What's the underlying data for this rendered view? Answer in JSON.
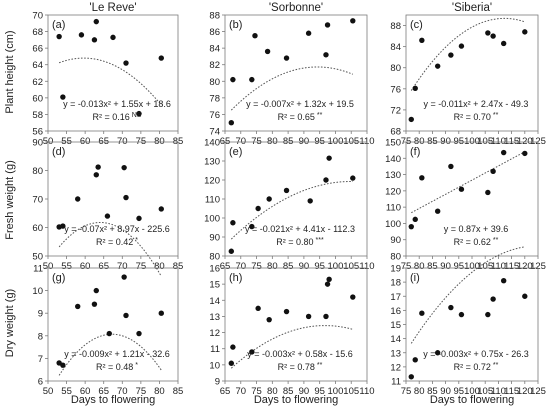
{
  "figure": {
    "column_titles": [
      "'Le Reve'",
      "'Sorbonne'",
      "'Siberia'"
    ],
    "row_ylabels": [
      "Plant height (cm)",
      "Fresh weight (g)",
      "Dry weight (g)"
    ],
    "xlabel": "Days to flowering"
  },
  "chart_data": [
    {
      "type": "scatter",
      "panel": "(a)",
      "col": 0,
      "row": 0,
      "xlim": [
        50,
        85
      ],
      "xticks": [
        50,
        55,
        60,
        65,
        70,
        75,
        80,
        85
      ],
      "ylim": [
        56,
        70
      ],
      "yticks": [
        56,
        58,
        60,
        62,
        64,
        66,
        68,
        70
      ],
      "points": [
        [
          53,
          67.4
        ],
        [
          54,
          60.1
        ],
        [
          59,
          67.6
        ],
        [
          62.5,
          67.0
        ],
        [
          63,
          69.2
        ],
        [
          67.5,
          67.3
        ],
        [
          71,
          64.2
        ],
        [
          74.5,
          58.1
        ],
        [
          80.5,
          64.8
        ]
      ],
      "fit": {
        "a": -0.013,
        "b": 1.55,
        "c": 18.6
      },
      "equation": "y = -0.013x² + 1.55x + 18.6",
      "r2_label": "R² = 0.16",
      "sig": "NS"
    },
    {
      "type": "scatter",
      "panel": "(b)",
      "col": 1,
      "row": 0,
      "xlim": [
        65,
        110
      ],
      "xticks": [
        65,
        70,
        75,
        80,
        85,
        90,
        95,
        100,
        105,
        110
      ],
      "ylim": [
        74,
        88
      ],
      "yticks": [
        74,
        76,
        78,
        80,
        82,
        84,
        86,
        88
      ],
      "points": [
        [
          67,
          75.0
        ],
        [
          67.5,
          80.2
        ],
        [
          73.5,
          80.2
        ],
        [
          74.5,
          85.5
        ],
        [
          78.5,
          83.6
        ],
        [
          84.5,
          82.8
        ],
        [
          91.5,
          85.8
        ],
        [
          97,
          83.2
        ],
        [
          97.5,
          86.8
        ],
        [
          105.5,
          87.3
        ]
      ],
      "fit": {
        "a": -0.007,
        "b": 1.32,
        "c": 19.5
      },
      "equation": "y = -0.007x² + 1.32x + 19.5",
      "r2_label": "R² = 0.65",
      "sig": "**"
    },
    {
      "type": "scatter",
      "panel": "(c)",
      "col": 2,
      "row": 0,
      "xlim": [
        75,
        125
      ],
      "xticks": [
        75,
        80,
        85,
        90,
        95,
        100,
        105,
        110,
        115,
        120,
        125
      ],
      "ylim": [
        68,
        90
      ],
      "yticks": [
        68,
        72,
        76,
        80,
        84,
        88
      ],
      "points": [
        [
          77,
          70.2
        ],
        [
          78.5,
          76.1
        ],
        [
          81,
          85.2
        ],
        [
          87,
          80.3
        ],
        [
          92,
          82.4
        ],
        [
          96,
          84.1
        ],
        [
          106,
          86.6
        ],
        [
          108,
          86.0
        ],
        [
          112,
          84.6
        ],
        [
          120,
          86.8
        ]
      ],
      "fit": {
        "a": -0.011,
        "b": 2.47,
        "c": -49.3
      },
      "equation": "y = -0.011x² + 2.47x - 49.3",
      "r2_label": "R² = 0.70",
      "sig": "**"
    },
    {
      "type": "scatter",
      "panel": "(d)",
      "col": 0,
      "row": 1,
      "xlim": [
        50,
        85
      ],
      "xticks": [
        50,
        55,
        60,
        65,
        70,
        75,
        80,
        85
      ],
      "ylim": [
        50,
        90
      ],
      "yticks": [
        50,
        60,
        70,
        80,
        90
      ],
      "points": [
        [
          53,
          60.2
        ],
        [
          54,
          60.5
        ],
        [
          58,
          70.0
        ],
        [
          63,
          78.5
        ],
        [
          63.5,
          81.2
        ],
        [
          66,
          64.0
        ],
        [
          70.5,
          81.0
        ],
        [
          71,
          70.5
        ],
        [
          74.5,
          63.2
        ],
        [
          80.5,
          66.5
        ]
      ],
      "fit": {
        "a": -0.07,
        "b": 8.97,
        "c": -225.6
      },
      "equation": "y = -0.07x² + 8.97x - 225.6",
      "r2_label": "R² = 0.42",
      "sig": "*"
    },
    {
      "type": "scatter",
      "panel": "(e)",
      "col": 1,
      "row": 1,
      "xlim": [
        65,
        110
      ],
      "xticks": [
        65,
        70,
        75,
        80,
        85,
        90,
        95,
        100,
        105,
        110
      ],
      "ylim": [
        80,
        140
      ],
      "yticks": [
        80,
        90,
        100,
        110,
        120,
        130,
        140
      ],
      "points": [
        [
          67,
          82.5
        ],
        [
          67.5,
          97.5
        ],
        [
          73.5,
          95.5
        ],
        [
          75.5,
          105.0
        ],
        [
          79,
          110.0
        ],
        [
          84.5,
          114.5
        ],
        [
          92,
          109.0
        ],
        [
          97,
          120.0
        ],
        [
          98,
          131.5
        ],
        [
          105.5,
          121.0
        ]
      ],
      "fit": {
        "a": -0.021,
        "b": 4.41,
        "c": -112.3
      },
      "equation": "y = -0.021x² + 4.41x - 112.3",
      "r2_label": "R² = 0.80",
      "sig": "***"
    },
    {
      "type": "scatter",
      "panel": "(f)",
      "col": 2,
      "row": 1,
      "xlim": [
        75,
        125
      ],
      "xticks": [
        75,
        80,
        85,
        90,
        95,
        100,
        105,
        110,
        115,
        120,
        125
      ],
      "ylim": [
        80,
        150
      ],
      "yticks": [
        80,
        90,
        100,
        110,
        120,
        130,
        140,
        150
      ],
      "points": [
        [
          77,
          98.0
        ],
        [
          78.5,
          102.5
        ],
        [
          81,
          128.0
        ],
        [
          87,
          107.5
        ],
        [
          92,
          135.0
        ],
        [
          96,
          121.0
        ],
        [
          106,
          119.0
        ],
        [
          108,
          132.0
        ],
        [
          112,
          143.5
        ],
        [
          120,
          143.0
        ]
      ],
      "fit": {
        "a": 0,
        "b": 0.87,
        "c": 39.6
      },
      "equation": "y = 0.87x + 39.6",
      "r2_label": "R² = 0.62",
      "sig": "**"
    },
    {
      "type": "scatter",
      "panel": "(g)",
      "col": 0,
      "row": 2,
      "xlim": [
        50,
        85
      ],
      "xticks": [
        50,
        55,
        60,
        65,
        70,
        75,
        80,
        85
      ],
      "ylim": [
        6,
        11
      ],
      "yticks": [
        6,
        7,
        8,
        9,
        10,
        11
      ],
      "points": [
        [
          53,
          6.8
        ],
        [
          54,
          6.7
        ],
        [
          58,
          9.3
        ],
        [
          62.5,
          9.4
        ],
        [
          63,
          10.0
        ],
        [
          66.5,
          8.1
        ],
        [
          70.5,
          10.6
        ],
        [
          71,
          8.9
        ],
        [
          74.5,
          8.1
        ],
        [
          80.5,
          9.0
        ]
      ],
      "fit": {
        "a": -0.009,
        "b": 1.21,
        "c": -32.6
      },
      "equation": "y = -0.009x² + 1.21x - 32.6",
      "r2_label": "R² = 0.48",
      "sig": "*"
    },
    {
      "type": "scatter",
      "panel": "(h)",
      "col": 1,
      "row": 2,
      "xlim": [
        65,
        110
      ],
      "xticks": [
        65,
        70,
        75,
        80,
        85,
        90,
        95,
        100,
        105,
        110
      ],
      "ylim": [
        9,
        16
      ],
      "yticks": [
        9,
        10,
        11,
        12,
        13,
        14,
        15,
        16
      ],
      "points": [
        [
          67,
          10.1
        ],
        [
          67.5,
          11.1
        ],
        [
          73.5,
          10.8
        ],
        [
          75.5,
          13.5
        ],
        [
          79,
          12.8
        ],
        [
          84.5,
          13.3
        ],
        [
          91.5,
          13.0
        ],
        [
          97,
          13.0
        ],
        [
          97.5,
          15.0
        ],
        [
          98,
          15.3
        ],
        [
          105.5,
          14.2
        ]
      ],
      "fit": {
        "a": -0.003,
        "b": 0.58,
        "c": -15.6
      },
      "equation": "y = -0.003x² + 0.58x - 15.6",
      "r2_label": "R² = 0.78",
      "sig": "**"
    },
    {
      "type": "scatter",
      "panel": "(i)",
      "col": 2,
      "row": 2,
      "xlim": [
        75,
        125
      ],
      "xticks": [
        75,
        80,
        85,
        90,
        95,
        100,
        105,
        110,
        115,
        120,
        125
      ],
      "ylim": [
        11,
        19
      ],
      "yticks": [
        11,
        12,
        13,
        14,
        15,
        16,
        17,
        18,
        19
      ],
      "points": [
        [
          77,
          11.3
        ],
        [
          78.5,
          12.5
        ],
        [
          81,
          15.8
        ],
        [
          87,
          13.0
        ],
        [
          92,
          16.2
        ],
        [
          96,
          15.7
        ],
        [
          106,
          15.7
        ],
        [
          108,
          16.8
        ],
        [
          112,
          18.1
        ],
        [
          120,
          17.0
        ]
      ],
      "fit": {
        "a": -0.003,
        "b": 0.75,
        "c": -26.3
      },
      "equation": "y = -0.003x² + 0.75x - 26.3",
      "r2_label": "R² = 0.72",
      "sig": "**"
    }
  ]
}
